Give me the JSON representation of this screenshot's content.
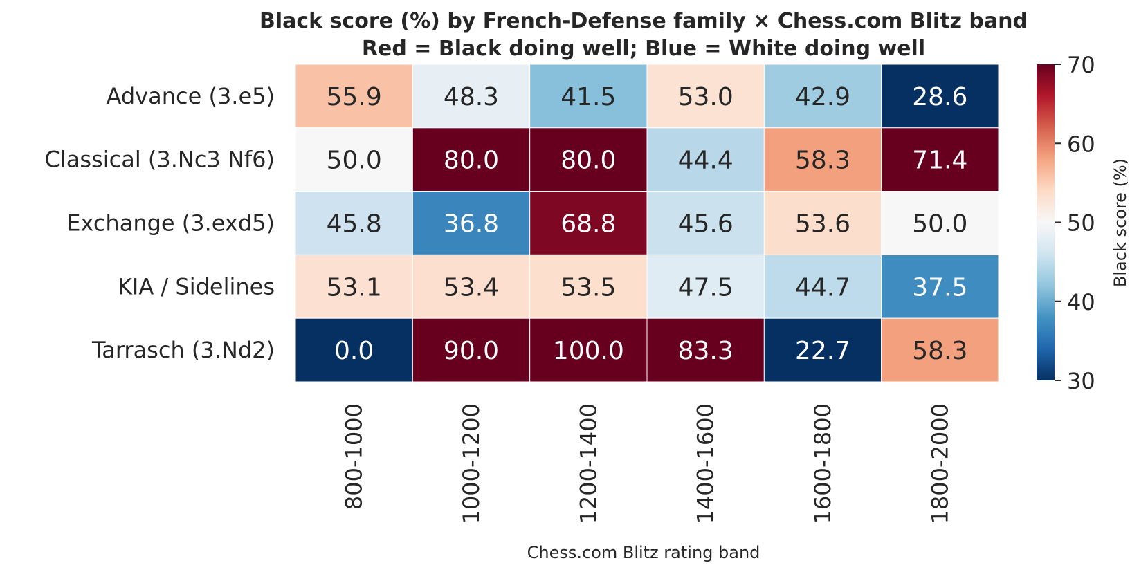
{
  "chart_data": {
    "type": "heatmap",
    "title": "Black score (%) by French-Defense family × Chess.com Blitz band",
    "subtitle": "Red = Black doing well; Blue = White doing well",
    "xlabel": "Chess.com Blitz rating band",
    "ylabel": "",
    "x_categories": [
      "800-1000",
      "1000-1200",
      "1200-1400",
      "1400-1600",
      "1600-1800",
      "1800-2000"
    ],
    "y_categories": [
      "Advance (3.e5)",
      "Classical (3.Nc3 Nf6)",
      "Exchange (3.exd5)",
      "KIA / Sidelines",
      "Tarrasch (3.Nd2)"
    ],
    "values": [
      [
        55.9,
        48.3,
        41.5,
        53.0,
        42.9,
        28.6
      ],
      [
        50.0,
        80.0,
        80.0,
        44.4,
        58.3,
        71.4
      ],
      [
        45.8,
        36.8,
        68.8,
        45.6,
        53.6,
        50.0
      ],
      [
        53.1,
        53.4,
        53.5,
        47.5,
        44.7,
        37.5
      ],
      [
        0.0,
        90.0,
        100.0,
        83.3,
        22.7,
        58.3
      ]
    ],
    "value_format": "0.1f",
    "colorbar": {
      "label": "Black score (%)",
      "vmin": 30,
      "vmax": 70,
      "ticks": [
        30,
        40,
        50,
        60,
        70
      ],
      "colormap": "RdBu_r"
    },
    "grid": false
  }
}
